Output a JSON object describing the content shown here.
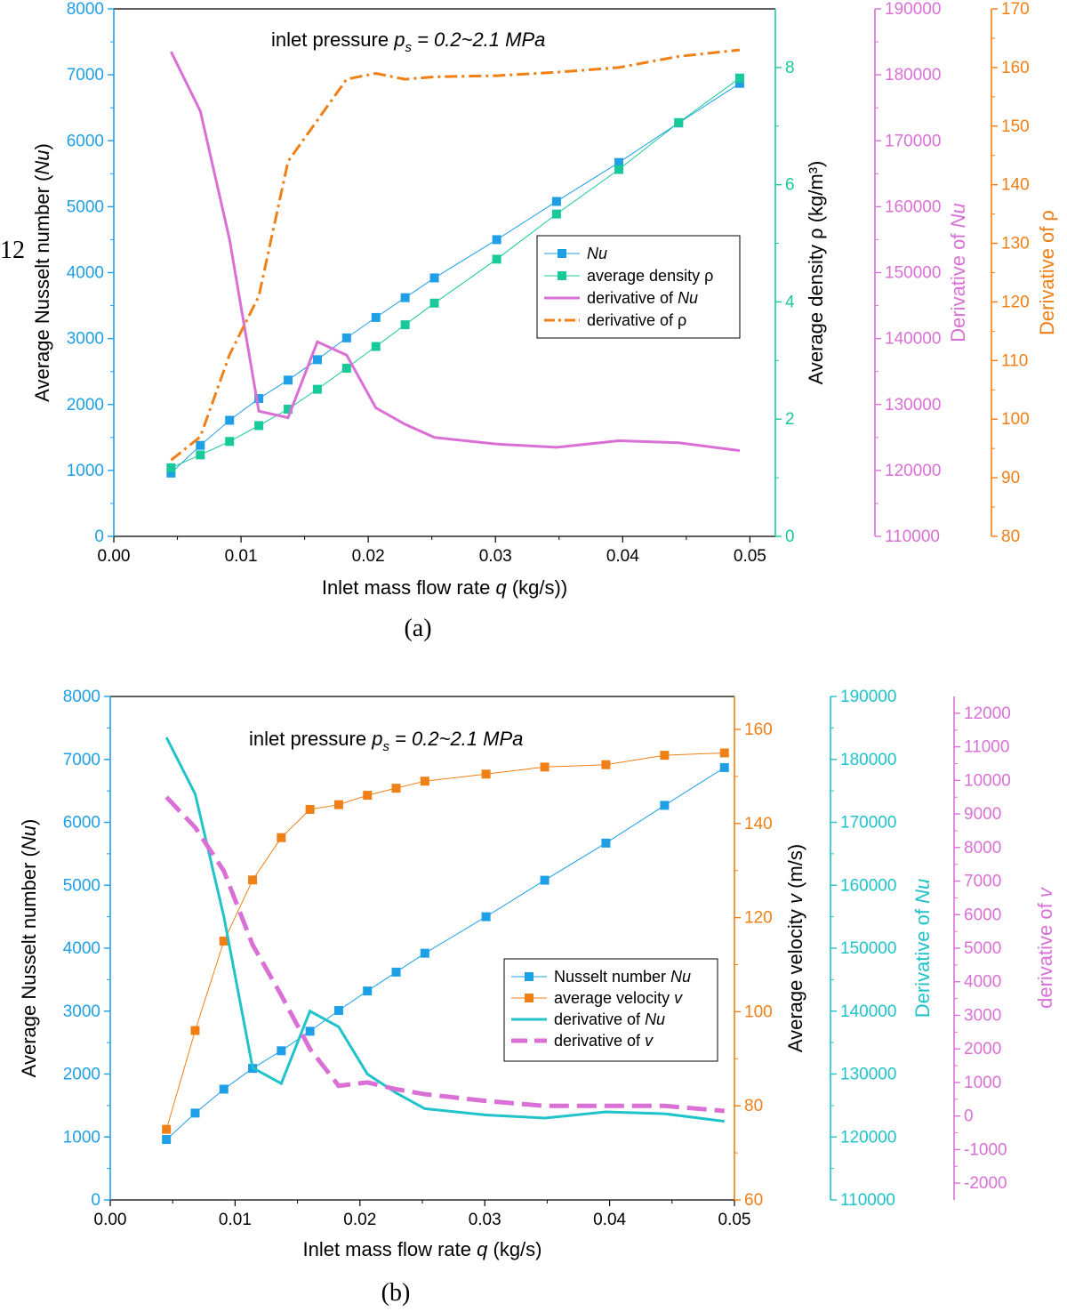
{
  "page": {
    "stray_text": "12"
  },
  "chart_data": [
    {
      "id": "a",
      "type": "line",
      "caption": "(a)",
      "annotation": {
        "prefix": "inlet pressure",
        "symbol": "p",
        "sub": "s",
        "value": " = 0.2~2.1 MPa"
      },
      "xlabel": {
        "pre": "Inlet mass flow rate ",
        "ital": "q",
        "post": " (kg/s))"
      },
      "x": [
        0.0045,
        0.0068,
        0.0091,
        0.0114,
        0.0137,
        0.016,
        0.0183,
        0.0206,
        0.0229,
        0.0252,
        0.0301,
        0.0348,
        0.0397,
        0.0444,
        0.0492
      ],
      "xlim": [
        0,
        0.052
      ],
      "xticks": [
        "0.00",
        "0.01",
        "0.02",
        "0.03",
        "0.04",
        "0.05"
      ],
      "axes": {
        "left": {
          "label_pre": "Average Nusselt number  (",
          "label_ital": "Nu",
          "label_post": ")",
          "ylim": [
            0,
            8000
          ],
          "ticks": [
            "0",
            "1000",
            "2000",
            "3000",
            "4000",
            "5000",
            "6000",
            "7000",
            "8000"
          ],
          "color": "#1E9FE6"
        },
        "right1": {
          "label": "Average density ρ (kg/m³)",
          "ylim": [
            0,
            9
          ],
          "ticks": [
            "0",
            "2",
            "4",
            "6",
            "8"
          ],
          "color": "#18C99A"
        },
        "right2": {
          "label_pre": "Derivative of ",
          "label_ital": "Nu",
          "ylim": [
            110000,
            190000
          ],
          "ticks": [
            "110000",
            "120000",
            "130000",
            "140000",
            "150000",
            "160000",
            "170000",
            "180000",
            "190000"
          ],
          "color": "#DA70D6"
        },
        "right3": {
          "label": "Derivative of ρ",
          "ylim": [
            80,
            170
          ],
          "ticks": [
            "80",
            "90",
            "100",
            "110",
            "120",
            "130",
            "140",
            "150",
            "160",
            "170"
          ],
          "color": "#F07F16"
        }
      },
      "series": [
        {
          "name": "Nu",
          "axis": "left",
          "style": "line-square",
          "color": "#1E9FE6",
          "values": [
            960,
            1380,
            1760,
            2090,
            2370,
            2680,
            3010,
            3320,
            3620,
            3920,
            4500,
            5080,
            5670,
            6270,
            6870
          ]
        },
        {
          "name": "average density ρ",
          "axis": "right1",
          "style": "line-square",
          "color": "#18C99A",
          "values": [
            1.17,
            1.39,
            1.62,
            1.89,
            2.17,
            2.51,
            2.87,
            3.24,
            3.61,
            3.98,
            4.73,
            5.5,
            6.26,
            7.06,
            7.82
          ]
        },
        {
          "name": "derivative of Nu",
          "axis": "right2",
          "style": "solid-thick",
          "color": "#DA70D6",
          "values": [
            183500,
            174500,
            155000,
            129000,
            128000,
            139500,
            137500,
            129500,
            127000,
            125000,
            124000,
            123500,
            124500,
            124200,
            123000
          ]
        },
        {
          "name": "derivative of ρ",
          "axis": "right3",
          "style": "dashdot",
          "color": "#F07F16",
          "values": [
            93,
            97,
            111,
            121,
            144,
            151,
            158,
            159,
            158,
            158.4,
            158.6,
            159.2,
            160,
            161.9,
            163
          ]
        }
      ],
      "legend": [
        {
          "text": "",
          "ital": "Nu",
          "color": "#1E9FE6",
          "style": "line-square"
        },
        {
          "text": "average density ρ",
          "ital": "",
          "color": "#18C99A",
          "style": "line-square"
        },
        {
          "text": "derivative of ",
          "ital": "Nu",
          "color": "#DA70D6",
          "style": "solid-thick"
        },
        {
          "text": "derivative of ρ",
          "ital": "",
          "color": "#F07F16",
          "style": "dashdot"
        }
      ]
    },
    {
      "id": "b",
      "type": "line",
      "caption": "(b)",
      "annotation": {
        "prefix": "inlet pressure",
        "symbol": "p",
        "sub": "s",
        "value": " = 0.2~2.1 MPa"
      },
      "xlabel": {
        "pre": "Inlet mass flow rate ",
        "ital": "q",
        "post": " (kg/s)"
      },
      "x": [
        0.0045,
        0.0068,
        0.0091,
        0.0114,
        0.0137,
        0.016,
        0.0183,
        0.0206,
        0.0229,
        0.0252,
        0.0301,
        0.0348,
        0.0397,
        0.0444,
        0.0492
      ],
      "xlim": [
        0,
        0.05
      ],
      "xticks": [
        "0.00",
        "0.01",
        "0.02",
        "0.03",
        "0.04",
        "0.05"
      ],
      "axes": {
        "left": {
          "label_pre": "Average Nusselt number (",
          "label_ital": "Nu",
          "label_post": ")",
          "ylim": [
            0,
            8000
          ],
          "ticks": [
            "0",
            "1000",
            "2000",
            "3000",
            "4000",
            "5000",
            "6000",
            "7000",
            "8000"
          ],
          "color": "#1E9FE6"
        },
        "right1": {
          "label_pre": "Average velocity ",
          "label_ital": "v",
          "label_post": " (m/s)",
          "ylim": [
            60,
            167
          ],
          "ticks": [
            "60",
            "80",
            "100",
            "120",
            "140",
            "160"
          ],
          "color": "#F07F16"
        },
        "right2": {
          "label_pre": "Derivative of ",
          "label_ital": "Nu",
          "ylim": [
            110000,
            190000
          ],
          "ticks": [
            "110000",
            "120000",
            "130000",
            "140000",
            "150000",
            "160000",
            "170000",
            "180000",
            "190000"
          ],
          "color": "#1FC3C9"
        },
        "right3": {
          "label_pre": "derivative of ",
          "label_ital": "v",
          "ylim": [
            -2500,
            12500
          ],
          "ticks": [
            "-2000",
            "-1000",
            "0",
            "1000",
            "2000",
            "3000",
            "4000",
            "5000",
            "6000",
            "7000",
            "8000",
            "9000",
            "10000",
            "11000",
            "12000"
          ],
          "color": "#DA70D6"
        }
      },
      "series": [
        {
          "name": "Nusselt number Nu",
          "axis": "left",
          "style": "line-square",
          "color": "#1E9FE6",
          "values": [
            960,
            1380,
            1760,
            2090,
            2370,
            2680,
            3010,
            3320,
            3620,
            3920,
            4500,
            5080,
            5670,
            6270,
            6870
          ]
        },
        {
          "name": "average velocity v",
          "axis": "right1",
          "style": "line-square",
          "color": "#F07F16",
          "values": [
            75,
            96,
            115,
            128,
            137,
            143,
            144,
            146,
            147.5,
            149,
            150.5,
            152,
            152.5,
            154.5,
            155
          ]
        },
        {
          "name": "derivative of Nu",
          "axis": "right2",
          "style": "solid-thick",
          "color": "#1FC3C9",
          "values": [
            183500,
            174500,
            155000,
            131000,
            128500,
            140000,
            137500,
            130000,
            127000,
            124500,
            123500,
            123000,
            124000,
            123700,
            122500
          ]
        },
        {
          "name": "derivative of v",
          "axis": "right3",
          "style": "dashed",
          "color": "#DA70D6",
          "values": [
            9500,
            8600,
            7300,
            5100,
            3600,
            2000,
            900,
            1000,
            800,
            650,
            450,
            300,
            300,
            300,
            150
          ]
        }
      ],
      "legend": [
        {
          "text": "Nusselt number ",
          "ital": "Nu",
          "color": "#1E9FE6",
          "style": "line-square"
        },
        {
          "text": "average velocity ",
          "ital": "v",
          "color": "#F07F16",
          "style": "line-square"
        },
        {
          "text": "derivative of ",
          "ital": "Nu",
          "color": "#1FC3C9",
          "style": "solid-thick"
        },
        {
          "text": "derivative of ",
          "ital": "v",
          "color": "#DA70D6",
          "style": "dashed"
        }
      ]
    }
  ]
}
